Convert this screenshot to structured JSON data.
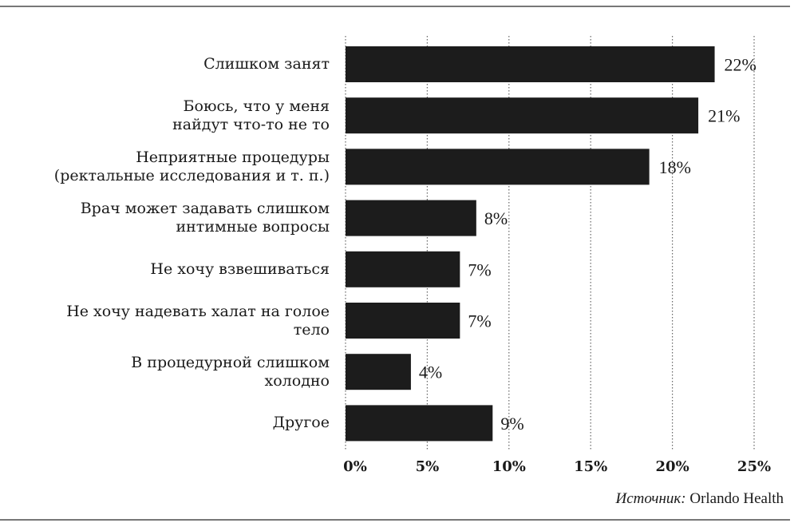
{
  "chart_data": {
    "type": "bar",
    "orientation": "horizontal",
    "categories": [
      "Слишком занят",
      "Боюсь, что у меня\nнайдут что-то не то",
      "Неприятные процедуры\n(ректальные исследования и т. п.)",
      "Врач может задавать слишком\nинтимные вопросы",
      "Не хочу взвешиваться",
      "Не хочу надевать халат на голое\nтело",
      "В процедурной слишком\nхолодно",
      "Другое"
    ],
    "values": [
      22,
      21,
      18,
      8,
      7,
      7,
      4,
      9
    ],
    "data_labels": [
      "22%",
      "21%",
      "18%",
      "8%",
      "7%",
      "7%",
      "4%",
      "9%"
    ],
    "xlim": [
      0,
      25
    ],
    "x_ticks": [
      0,
      5,
      10,
      15,
      20,
      25
    ],
    "x_tick_labels": [
      "0%",
      "5%",
      "10%",
      "15%",
      "20%",
      "25%"
    ],
    "grid": "vertical dotted",
    "bar_color": "#1c1c1c"
  },
  "source": {
    "label": "Источник:",
    "name": "Orlando Health"
  }
}
